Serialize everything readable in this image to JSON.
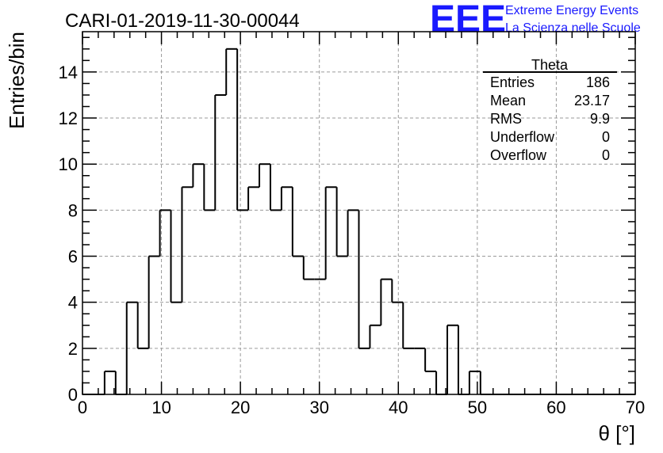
{
  "header": {
    "title": "CARI-01-2019-11-30-00044",
    "logo_text": "EEE",
    "logo_line1": "Extreme Energy Events",
    "logo_line2": "La Scienza nelle Scuole"
  },
  "stats_box": {
    "title": "Theta",
    "rows": [
      {
        "label": "Entries",
        "value": "186"
      },
      {
        "label": "Mean",
        "value": "23.17"
      },
      {
        "label": "RMS",
        "value": "9.9"
      },
      {
        "label": "Underflow",
        "value": "0"
      },
      {
        "label": "Overflow",
        "value": "0"
      }
    ]
  },
  "chart_data": {
    "type": "bar",
    "histogram": true,
    "title": "CARI-01-2019-11-30-00044",
    "xlabel": "θ [°]",
    "ylabel": "Entries/bin",
    "xlim": [
      0,
      70
    ],
    "ylim": [
      0,
      15.75
    ],
    "bin_width": 1.4,
    "x_ticks": [
      0,
      10,
      20,
      30,
      40,
      50,
      60,
      70
    ],
    "y_ticks": [
      0,
      2,
      4,
      6,
      8,
      10,
      12,
      14
    ],
    "grid": true,
    "line_color": "#000000",
    "values": [
      0,
      0,
      1,
      0,
      4,
      2,
      6,
      8,
      4,
      9,
      10,
      8,
      13,
      15,
      8,
      9,
      10,
      8,
      9,
      6,
      5,
      5,
      9,
      6,
      8,
      2,
      3,
      5,
      4,
      2,
      2,
      1,
      0,
      3,
      0,
      1,
      0,
      0,
      0,
      0,
      0,
      0,
      0,
      0,
      0,
      0,
      0,
      0,
      0,
      0
    ]
  }
}
